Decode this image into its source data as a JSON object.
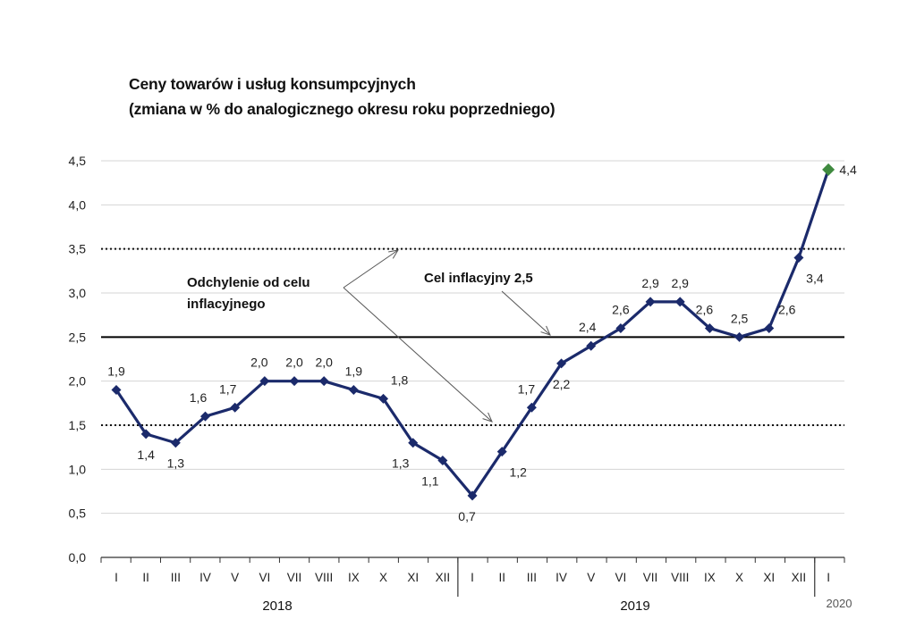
{
  "chart_data": {
    "type": "line",
    "title": "Ceny towarów i usług konsumpcyjnych",
    "subtitle": "(zmiana w % do analogicznego okresu roku poprzedniego)",
    "ylim": [
      0,
      4.5
    ],
    "y_ticks": [
      "0,0",
      "0,5",
      "1,0",
      "1,5",
      "2,0",
      "2,5",
      "3,0",
      "3,5",
      "4,0",
      "4,5"
    ],
    "categories": [
      "I",
      "II",
      "III",
      "IV",
      "V",
      "VI",
      "VII",
      "VIII",
      "IX",
      "X",
      "XI",
      "XII",
      "I",
      "II",
      "III",
      "IV",
      "V",
      "VI",
      "VII",
      "VIII",
      "IX",
      "X",
      "XI",
      "XII",
      "I"
    ],
    "years": [
      "2018",
      "2019",
      "2020"
    ],
    "values": [
      1.9,
      1.4,
      1.3,
      1.6,
      1.7,
      2.0,
      2.0,
      2.0,
      1.9,
      1.8,
      1.3,
      1.1,
      0.7,
      1.2,
      1.7,
      2.2,
      2.4,
      2.6,
      2.9,
      2.9,
      2.6,
      2.5,
      2.6,
      3.4,
      4.4
    ],
    "value_labels": [
      "1,9",
      "1,4",
      "1,3",
      "1,6",
      "1,7",
      "2,0",
      "2,0",
      "2,0",
      "1,9",
      "1,8",
      "1,3",
      "1,1",
      "0,7",
      "1,2",
      "1,7",
      "2,2",
      "2,4",
      "2,6",
      "2,9",
      "2,9",
      "2,6",
      "2,5",
      "2,6",
      "3,4",
      "4,4"
    ],
    "target": 2.5,
    "band": [
      1.5,
      3.5
    ],
    "annotations": {
      "target_label": "Cel inflacyjny 2,5",
      "band_label_line1": "Odchylenie od celu",
      "band_label_line2": "inflacyjnego"
    },
    "colors": {
      "line": "#1b2a6b",
      "last_point": "#3f8a3f",
      "target_line": "#000000"
    }
  }
}
